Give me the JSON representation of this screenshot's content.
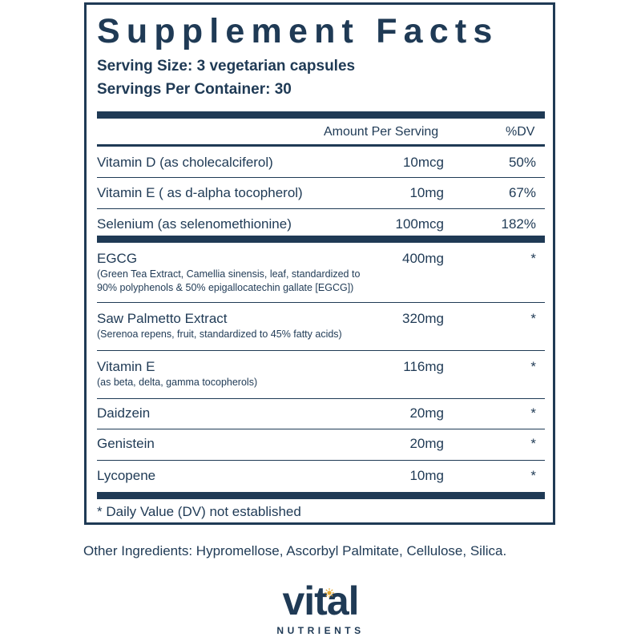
{
  "title": "Supplement Facts",
  "serving_size": "Serving Size: 3 vegetarian capsules",
  "servings_per_container": "Servings Per Container: 30",
  "header": {
    "amount": "Amount Per Serving",
    "dv": "%DV"
  },
  "vitamins": [
    {
      "name": "Vitamin D (as cholecalciferol)",
      "amount": "10mcg",
      "dv": "50%"
    },
    {
      "name": "Vitamin E ( as d-alpha tocopherol)",
      "amount": "10mg",
      "dv": "67%"
    },
    {
      "name": "Selenium (as selenomethionine)",
      "amount": "100mcg",
      "dv": "182%"
    }
  ],
  "ingredients": [
    {
      "name": "EGCG",
      "desc_1": "(Green Tea Extract, Camellia sinensis, leaf, standardized to",
      "desc_2": "90% polyphenols & 50% epigallocatechin gallate [EGCG])",
      "amount": "400mg",
      "dv": "*"
    },
    {
      "name": "Saw Palmetto Extract",
      "desc_1": "(Serenoa repens, fruit, standardized to 45% fatty acids)",
      "amount": "320mg",
      "dv": "*"
    },
    {
      "name": "Vitamin E",
      "desc_1": "(as beta, delta, gamma tocopherols)",
      "amount": "116mg",
      "dv": "*"
    },
    {
      "name": "Daidzein",
      "amount": "20mg",
      "dv": "*"
    },
    {
      "name": "Genistein",
      "amount": "20mg",
      "dv": "*"
    },
    {
      "name": "Lycopene",
      "amount": "10mg",
      "dv": "*"
    }
  ],
  "footnote": "* Daily Value (DV) not established",
  "other_ingredients": "Other Ingredients: Hypromellose, Ascorbyl Palmitate, Cellulose, Silica.",
  "brand": {
    "word": "vital",
    "sub": "NUTRIENTS"
  },
  "colors": {
    "primary": "#1f3a55",
    "accent": "#e3a72f"
  }
}
